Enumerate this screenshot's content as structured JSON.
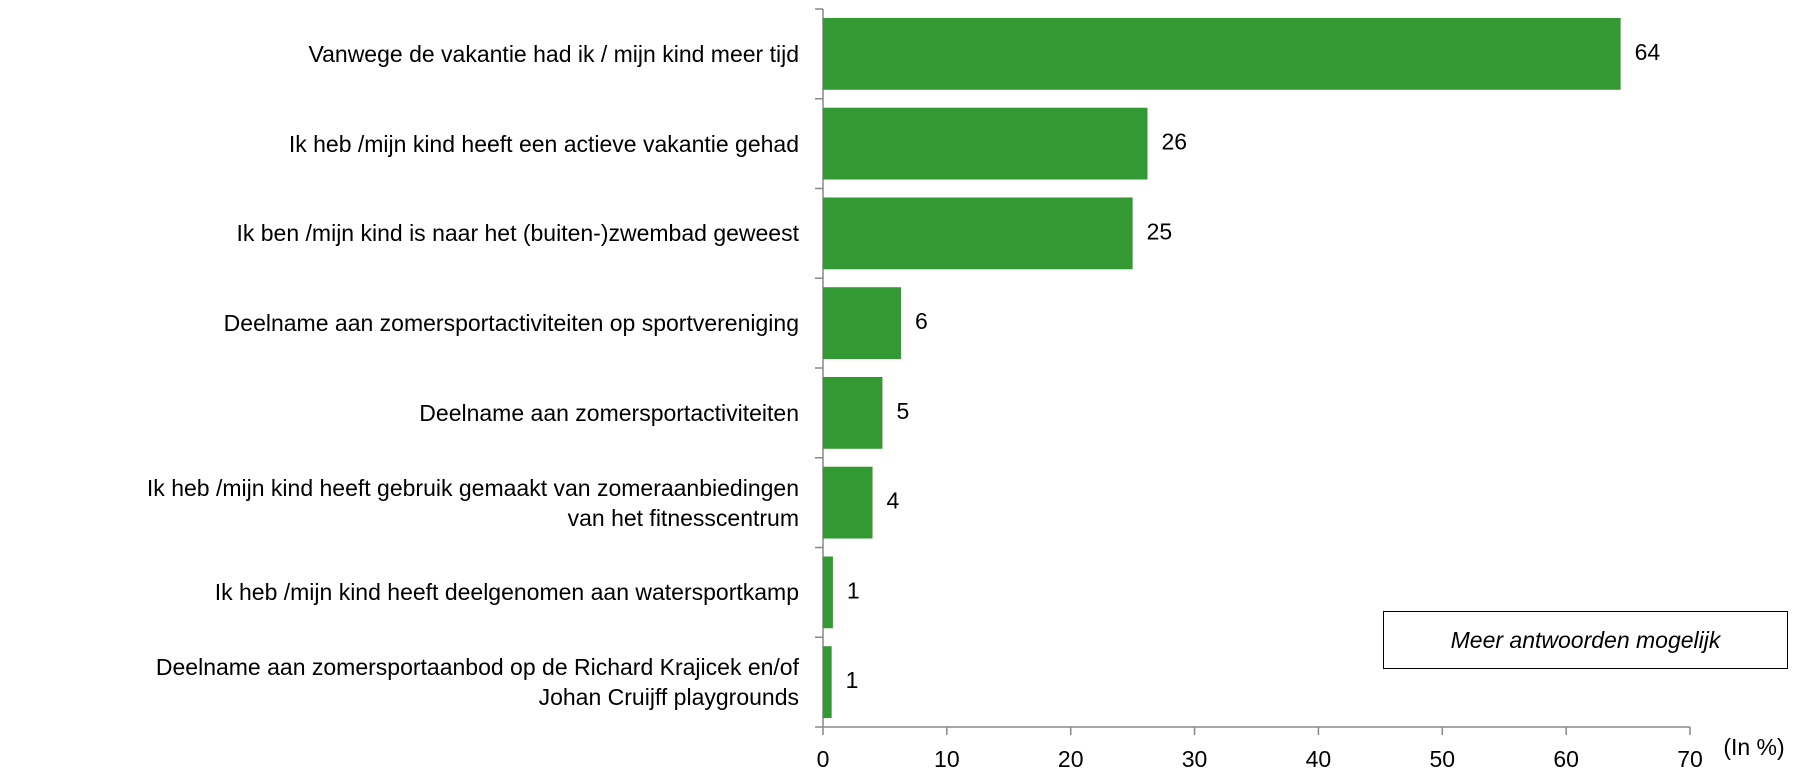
{
  "chart_data": {
    "type": "barh",
    "categories": [
      "Vanwege de vakantie had ik / mijn kind meer tijd",
      "Ik heb /mijn kind heeft een actieve vakantie gehad",
      "Ik ben /mijn kind is naar het (buiten-)zwembad geweest",
      "Deelname aan zomersportactiviteiten op sportvereniging",
      "Deelname aan zomersportactiviteiten",
      "Ik heb /mijn kind heeft gebruik gemaakt van zomeraanbiedingen\nvan het fitnesscentrum",
      "Ik heb /mijn kind heeft deelgenomen aan watersportkamp",
      "Deelname aan zomersportaanbod op de Richard Krajicek en/of\nJohan Cruijff playgrounds"
    ],
    "values": [
      64.4,
      26.2,
      25.0,
      6.3,
      4.8,
      4.0,
      0.8,
      0.7
    ],
    "value_labels": [
      "64",
      "26",
      "25",
      "6",
      "5",
      "4",
      "1",
      "1"
    ],
    "color": "#339933",
    "xlim": [
      0,
      70
    ],
    "xticks": [
      0,
      10,
      20,
      30,
      40,
      50,
      60,
      70
    ],
    "x_label": "(In %)",
    "annotation": "Meer antwoorden mogelijk"
  }
}
